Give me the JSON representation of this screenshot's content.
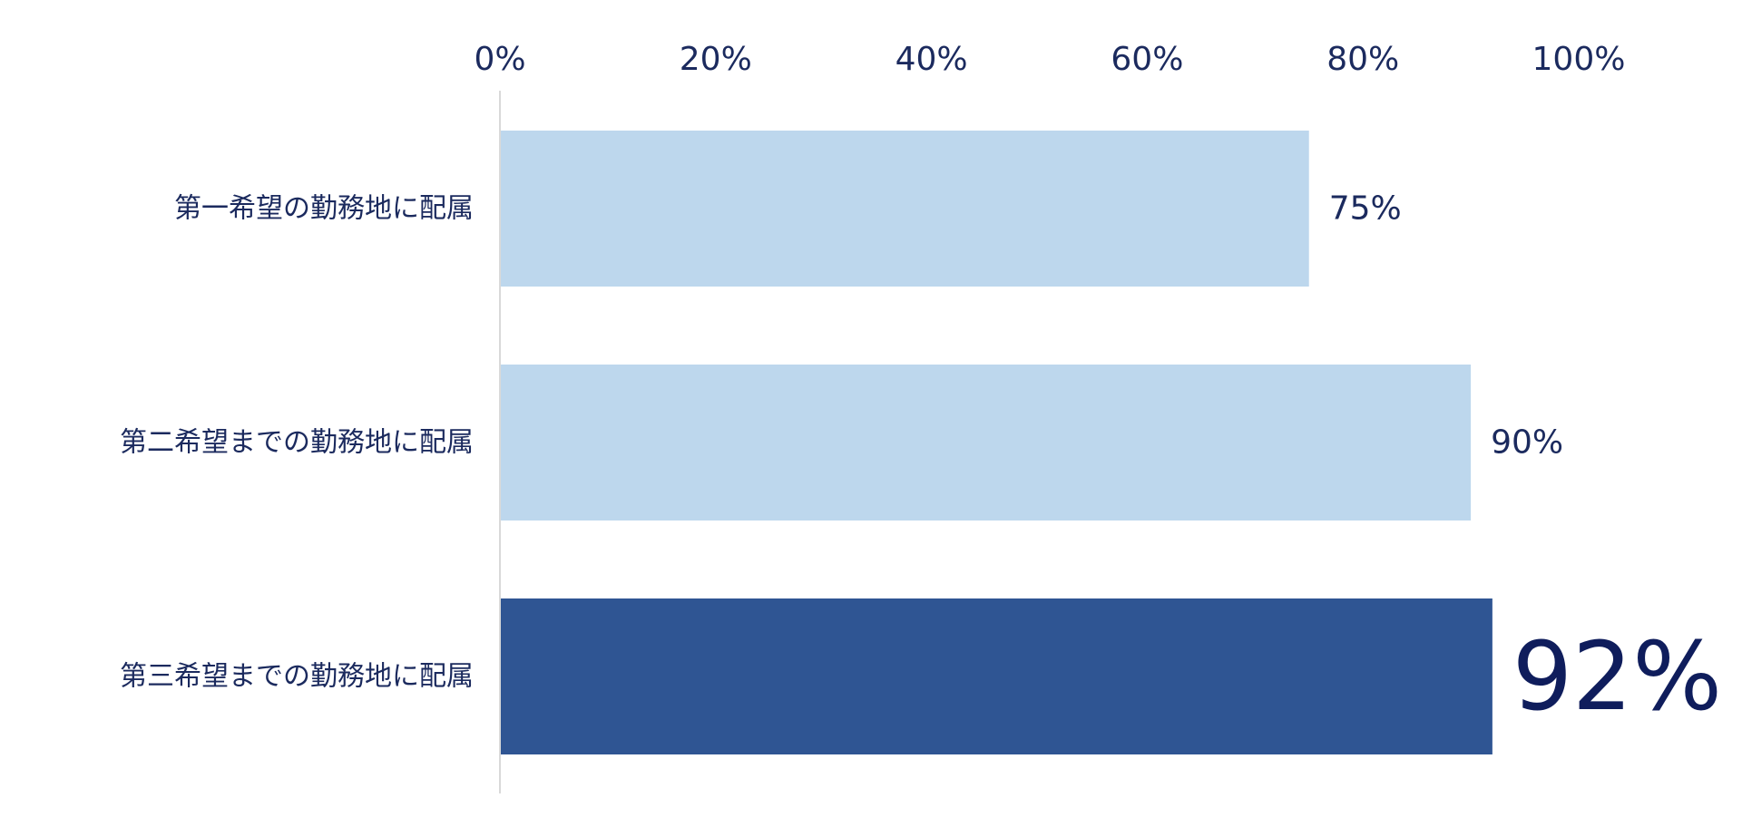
{
  "chart_data": {
    "type": "bar",
    "orientation": "horizontal",
    "title": "",
    "xlabel": "",
    "ylabel": "",
    "xlim": [
      0,
      100
    ],
    "ticks": [
      "0%",
      "20%",
      "40%",
      "60%",
      "80%",
      "100%"
    ],
    "tick_values": [
      0,
      20,
      40,
      60,
      80,
      100
    ],
    "tick_position": "top",
    "grid": false,
    "legend": "none",
    "categories": [
      "第一希望の勤務地に配属",
      "第二希望までの勤務地に配属",
      "第三希望までの勤務地に配属"
    ],
    "values": [
      75,
      90,
      92
    ],
    "value_labels": [
      "75%",
      "90%",
      "92%"
    ],
    "highlighted": [
      false,
      false,
      true
    ],
    "colors": {
      "bar": "#bdd7ed",
      "bar_highlight": "#2f5593",
      "text": "#1b2a5e",
      "text_highlight": "#0f1d5c",
      "axis": "#d9d9d9"
    }
  }
}
